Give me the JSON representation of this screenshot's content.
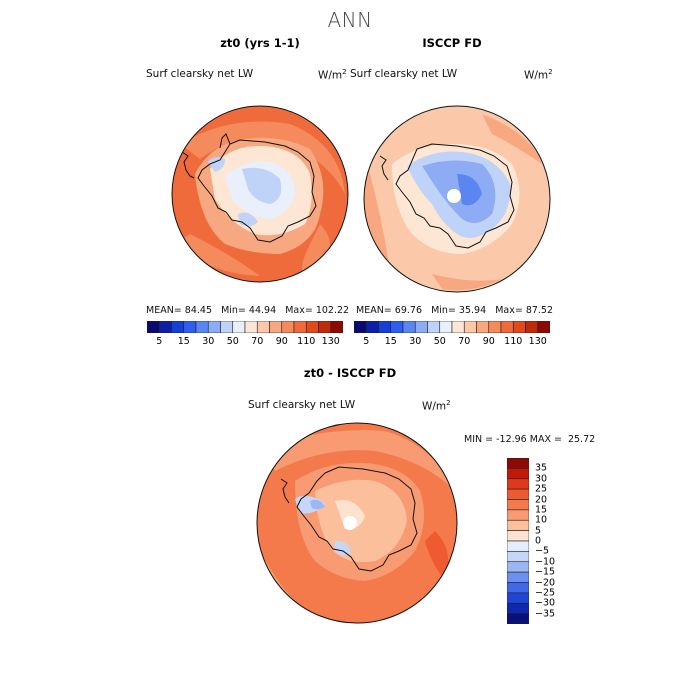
{
  "title": "ANN",
  "panels": [
    {
      "title": "zt0 (yrs 1-1)",
      "variable": "Surf clearsky net LW",
      "units_base": "W/m",
      "units_exp": "2",
      "stats": {
        "mean_label": "MEAN=",
        "mean": "84.45",
        "min_label": "Min=",
        "min": "44.94",
        "max_label": "Max=",
        "max": "102.22"
      }
    },
    {
      "title": "ISCCP FD",
      "variable": "Surf clearsky net LW",
      "units_base": "W/m",
      "units_exp": "2",
      "stats": {
        "mean_label": "MEAN=",
        "mean": "69.76",
        "min_label": "Min=",
        "min": "35.94",
        "max_label": "Max=",
        "max": "87.52"
      }
    },
    {
      "title": "zt0 - ISCCP FD",
      "variable": "Surf clearsky net LW",
      "units_base": "W/m",
      "units_exp": "2",
      "stats": {
        "text": "MIN = -12.96 MAX =  25.72"
      }
    }
  ],
  "colorbar_abs": {
    "labels": [
      "5",
      "15",
      "30",
      "50",
      "70",
      "90",
      "110",
      "130"
    ],
    "colors": [
      "#0a0a6e",
      "#0d1fa8",
      "#1540d8",
      "#2e5ef0",
      "#5b86f2",
      "#8dacf4",
      "#bfd3f8",
      "#e9f0fc",
      "#fde6d4",
      "#fbc9aa",
      "#f8a880",
      "#f58a5c",
      "#f06b3c",
      "#e04a1f",
      "#c02a0c",
      "#8c0a04"
    ]
  },
  "colorbar_diff": {
    "labels": [
      "35",
      "30",
      "25",
      "20",
      "15",
      "10",
      "5",
      "0",
      "−5",
      "−10",
      "−15",
      "−20",
      "−25",
      "−30",
      "−35"
    ],
    "colors": [
      "#8c0a04",
      "#c21a08",
      "#e0381a",
      "#ef5a30",
      "#f47a4c",
      "#f89a72",
      "#fbbf9c",
      "#fde3cf",
      "#e4edfb",
      "#c6d6f8",
      "#9ab7f4",
      "#6d90f0",
      "#3f69ea",
      "#2045d6",
      "#0e27b0",
      "#09107a"
    ]
  },
  "chart_data": [
    {
      "type": "heatmap",
      "title": "zt0 (yrs 1-1)",
      "variable": "Surf clearsky net LW",
      "units": "W/m2",
      "mean": 84.45,
      "min": 44.94,
      "max": 102.22,
      "contour_levels": [
        5,
        15,
        30,
        50,
        70,
        90,
        110,
        130
      ]
    },
    {
      "type": "heatmap",
      "title": "ISCCP FD",
      "variable": "Surf clearsky net LW",
      "units": "W/m2",
      "mean": 69.76,
      "min": 35.94,
      "max": 87.52,
      "contour_levels": [
        5,
        15,
        30,
        50,
        70,
        90,
        110,
        130
      ]
    },
    {
      "type": "heatmap",
      "title": "zt0 - ISCCP FD",
      "variable": "Surf clearsky net LW",
      "units": "W/m2",
      "min": -12.96,
      "max": 25.72,
      "contour_levels": [
        -35,
        -30,
        -25,
        -20,
        -15,
        -10,
        -5,
        0,
        5,
        10,
        15,
        20,
        25,
        30,
        35
      ]
    }
  ]
}
